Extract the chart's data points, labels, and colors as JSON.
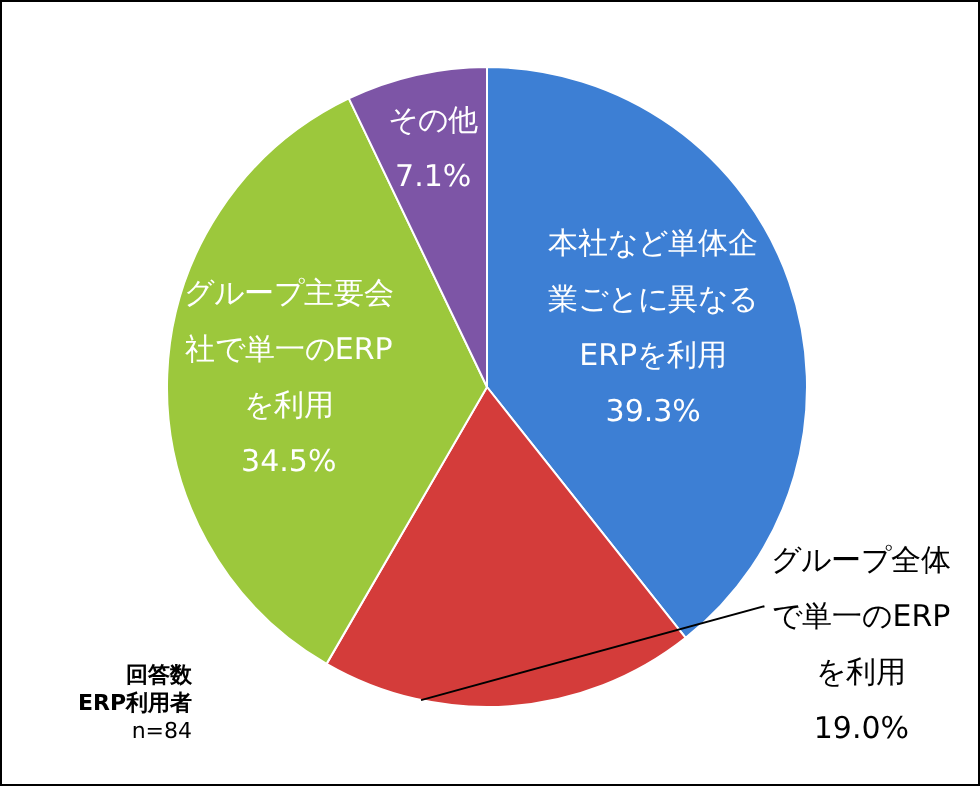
{
  "chart_data": {
    "type": "pie",
    "categories": [
      "本社など単体企業ごとに異なるERPを利用",
      "グループ全体で単一のERPを利用",
      "グループ主要会社で単一のERPを利用",
      "その他"
    ],
    "values": [
      39.3,
      19.0,
      34.5,
      7.1
    ],
    "colors": [
      "#3d7fd4",
      "#d43c3a",
      "#9cc83c",
      "#7d55a6"
    ],
    "value_labels": [
      "39.3%",
      "19.0%",
      "34.5%",
      "7.1%"
    ],
    "legend": false,
    "annotations": [
      "回答数",
      "ERP利用者",
      "n=84"
    ]
  }
}
